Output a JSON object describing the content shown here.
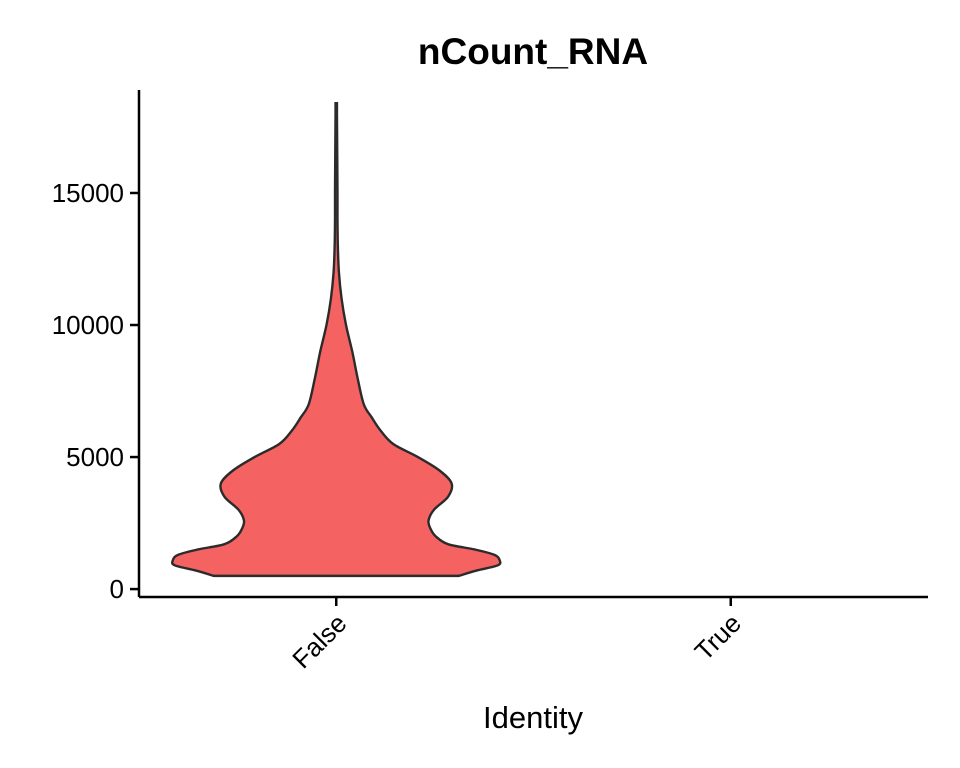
{
  "chart_data": {
    "type": "violin",
    "title": "nCount_RNA",
    "xlabel": "Identity",
    "ylabel": "",
    "categories": [
      "False",
      "True"
    ],
    "ylim": [
      -300,
      18900
    ],
    "yticks": [
      0,
      5000,
      10000,
      15000
    ],
    "legend": "none",
    "grid": false,
    "series": [
      {
        "category": "False",
        "color": "#F56262",
        "profile": [
          [
            500,
            0.69
          ],
          [
            700,
            0.79
          ],
          [
            900,
            0.91
          ],
          [
            1100,
            0.92
          ],
          [
            1300,
            0.89
          ],
          [
            1500,
            0.78
          ],
          [
            1700,
            0.63
          ],
          [
            2000,
            0.56
          ],
          [
            2300,
            0.53
          ],
          [
            2600,
            0.52
          ],
          [
            3000,
            0.55
          ],
          [
            3500,
            0.63
          ],
          [
            4000,
            0.65
          ],
          [
            4500,
            0.58
          ],
          [
            5000,
            0.46
          ],
          [
            5500,
            0.32
          ],
          [
            6000,
            0.25
          ],
          [
            6500,
            0.2
          ],
          [
            7000,
            0.155
          ],
          [
            8000,
            0.12
          ],
          [
            9000,
            0.09
          ],
          [
            10000,
            0.055
          ],
          [
            11000,
            0.03
          ],
          [
            12000,
            0.015
          ],
          [
            13000,
            0.009
          ],
          [
            14000,
            0.007
          ],
          [
            15000,
            0.007
          ],
          [
            16000,
            0.006
          ],
          [
            17000,
            0.005
          ],
          [
            18000,
            0.004
          ],
          [
            18400,
            0.004
          ]
        ]
      }
    ]
  }
}
